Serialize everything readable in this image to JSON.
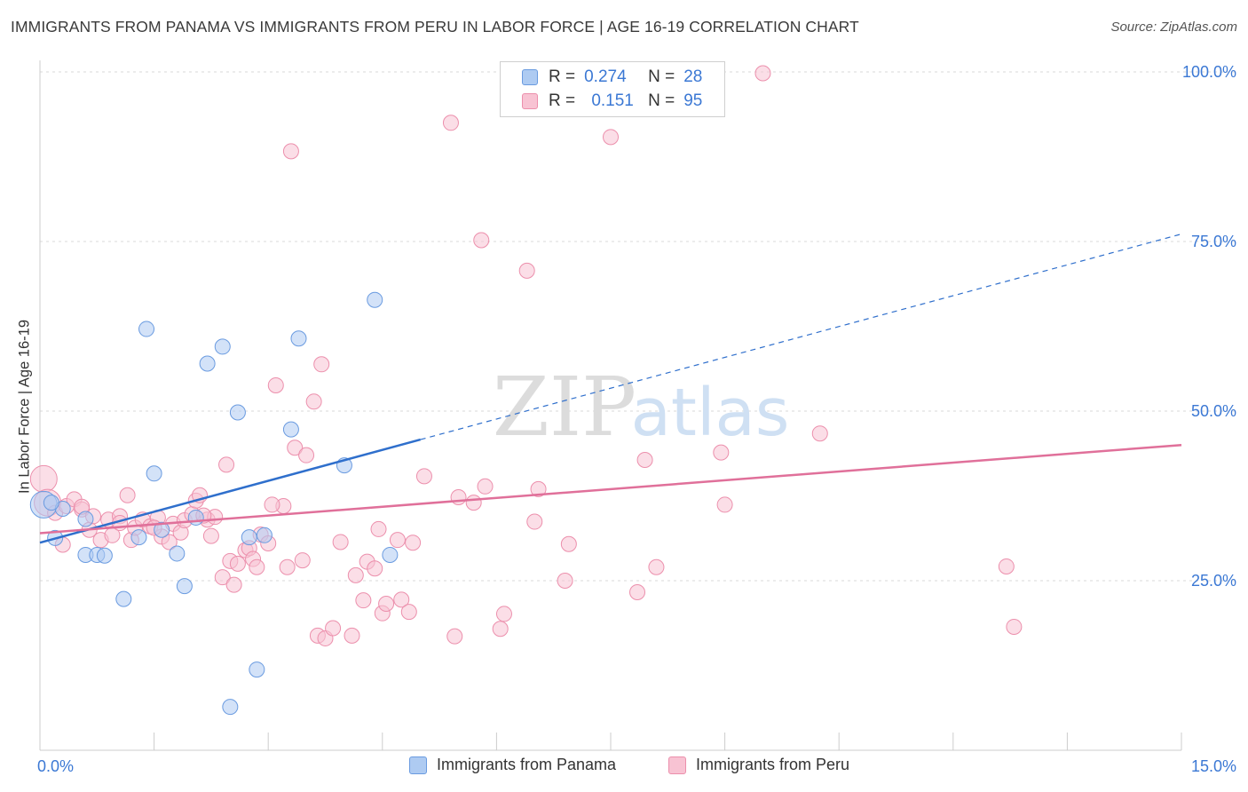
{
  "header": {
    "title": "IMMIGRANTS FROM PANAMA VS IMMIGRANTS FROM PERU IN LABOR FORCE | AGE 16-19 CORRELATION CHART",
    "source": "Source: ZipAtlas.com"
  },
  "watermark": {
    "zip": "ZIP",
    "atlas": "atlas"
  },
  "legend_top": {
    "rows": [
      {
        "r_label": "R =",
        "r_value": "0.274",
        "n_label": "N =",
        "n_value": "28"
      },
      {
        "r_label": "R =",
        "r_value": "0.151",
        "n_label": "N =",
        "n_value": "95"
      }
    ]
  },
  "legend_bottom": {
    "items": [
      {
        "label": "Immigrants from Panama"
      },
      {
        "label": "Immigrants from Peru"
      }
    ]
  },
  "colors": {
    "panama_fill": "#aecbf2",
    "panama_stroke": "#6a9be0",
    "panama_line": "#2f6fcc",
    "peru_fill": "#f8c3d3",
    "peru_stroke": "#ec8fac",
    "peru_line": "#e0709a",
    "tick_text": "#3b78d4",
    "grid": "#d9d9d9"
  },
  "chart_data": {
    "type": "scatter",
    "title": "IMMIGRANTS FROM PANAMA VS IMMIGRANTS FROM PERU IN LABOR FORCE | AGE 16-19 CORRELATION CHART",
    "xlabel": "",
    "ylabel": "In Labor Force | Age 16-19",
    "xlim": [
      0,
      15
    ],
    "ylim": [
      0,
      100
    ],
    "x_tick_labels": [
      "0.0%",
      "15.0%"
    ],
    "y_ticks": [
      25,
      50,
      75,
      100
    ],
    "y_tick_labels": [
      "25.0%",
      "50.0%",
      "75.0%",
      "100.0%"
    ],
    "grid": true,
    "legend_position": "top-center",
    "series": [
      {
        "name": "Immigrants from Panama",
        "r": 0.274,
        "n": 28,
        "trend": {
          "x0": 0.0,
          "y0": 30.6,
          "x1": 5.0,
          "y1": 45.8,
          "dashed_to_x": 15.0,
          "dashed_to_y": 76.1
        },
        "points": [
          [
            0.05,
            36.2
          ],
          [
            0.2,
            31.3
          ],
          [
            0.3,
            35.6
          ],
          [
            0.6,
            34.1
          ],
          [
            0.6,
            28.8
          ],
          [
            0.75,
            28.8
          ],
          [
            0.85,
            28.7
          ],
          [
            1.1,
            22.3
          ],
          [
            1.3,
            31.4
          ],
          [
            1.4,
            62.1
          ],
          [
            1.5,
            40.8
          ],
          [
            1.6,
            32.5
          ],
          [
            1.8,
            29.0
          ],
          [
            1.9,
            24.2
          ],
          [
            2.05,
            34.3
          ],
          [
            2.2,
            57.0
          ],
          [
            2.4,
            59.5
          ],
          [
            2.5,
            6.4
          ],
          [
            2.6,
            49.8
          ],
          [
            2.75,
            31.4
          ],
          [
            2.85,
            11.9
          ],
          [
            2.95,
            31.7
          ],
          [
            3.3,
            47.3
          ],
          [
            3.4,
            60.7
          ],
          [
            4.0,
            42.0
          ],
          [
            4.4,
            66.4
          ],
          [
            4.6,
            28.8
          ],
          [
            0.15,
            36.5
          ]
        ]
      },
      {
        "name": "Immigrants from Peru",
        "r": 0.151,
        "n": 95,
        "trend": {
          "x0": 0.0,
          "y0": 32.0,
          "x1": 15.0,
          "y1": 45.0
        },
        "points": [
          [
            0.05,
            40.0
          ],
          [
            0.1,
            36.5
          ],
          [
            0.2,
            35.0
          ],
          [
            0.3,
            30.3
          ],
          [
            0.35,
            36.0
          ],
          [
            0.45,
            37.0
          ],
          [
            0.55,
            35.5
          ],
          [
            0.65,
            32.5
          ],
          [
            0.7,
            34.5
          ],
          [
            0.8,
            31.0
          ],
          [
            0.9,
            34.0
          ],
          [
            0.95,
            31.7
          ],
          [
            1.05,
            34.5
          ],
          [
            1.15,
            37.6
          ],
          [
            1.2,
            31.0
          ],
          [
            1.25,
            32.8
          ],
          [
            1.35,
            34.0
          ],
          [
            1.45,
            33.0
          ],
          [
            1.55,
            34.3
          ],
          [
            1.6,
            31.5
          ],
          [
            1.7,
            30.7
          ],
          [
            1.75,
            33.4
          ],
          [
            1.85,
            32.1
          ],
          [
            1.9,
            33.9
          ],
          [
            2.0,
            34.8
          ],
          [
            2.05,
            36.8
          ],
          [
            2.1,
            37.6
          ],
          [
            2.2,
            34.0
          ],
          [
            2.25,
            31.6
          ],
          [
            2.3,
            34.4
          ],
          [
            2.4,
            25.5
          ],
          [
            2.45,
            42.1
          ],
          [
            2.5,
            27.9
          ],
          [
            2.55,
            24.4
          ],
          [
            2.6,
            27.5
          ],
          [
            2.7,
            29.5
          ],
          [
            2.75,
            29.8
          ],
          [
            2.8,
            28.2
          ],
          [
            2.85,
            27.0
          ],
          [
            2.9,
            31.8
          ],
          [
            3.0,
            30.5
          ],
          [
            3.1,
            53.8
          ],
          [
            3.2,
            36.0
          ],
          [
            3.25,
            27.0
          ],
          [
            3.3,
            88.3
          ],
          [
            3.35,
            44.6
          ],
          [
            3.45,
            28.0
          ],
          [
            3.5,
            43.5
          ],
          [
            3.6,
            51.4
          ],
          [
            3.65,
            16.9
          ],
          [
            3.7,
            56.9
          ],
          [
            3.75,
            16.5
          ],
          [
            3.85,
            18.0
          ],
          [
            3.95,
            30.7
          ],
          [
            4.1,
            16.9
          ],
          [
            4.15,
            25.8
          ],
          [
            4.25,
            22.1
          ],
          [
            4.3,
            27.8
          ],
          [
            4.4,
            26.8
          ],
          [
            4.45,
            32.6
          ],
          [
            4.5,
            20.2
          ],
          [
            4.55,
            21.6
          ],
          [
            4.7,
            31.0
          ],
          [
            4.75,
            22.2
          ],
          [
            4.85,
            20.4
          ],
          [
            4.9,
            30.6
          ],
          [
            5.05,
            40.4
          ],
          [
            5.4,
            92.5
          ],
          [
            5.45,
            16.8
          ],
          [
            5.5,
            37.3
          ],
          [
            5.7,
            36.5
          ],
          [
            5.8,
            75.2
          ],
          [
            5.85,
            38.9
          ],
          [
            6.05,
            17.9
          ],
          [
            6.1,
            20.1
          ],
          [
            6.4,
            70.7
          ],
          [
            6.5,
            33.7
          ],
          [
            6.55,
            38.5
          ],
          [
            6.9,
            25.0
          ],
          [
            6.95,
            30.4
          ],
          [
            7.5,
            90.4
          ],
          [
            7.85,
            23.3
          ],
          [
            7.95,
            42.8
          ],
          [
            8.1,
            27.0
          ],
          [
            8.95,
            43.9
          ],
          [
            9.0,
            36.2
          ],
          [
            9.5,
            99.8
          ],
          [
            10.25,
            46.7
          ],
          [
            12.7,
            27.1
          ],
          [
            12.8,
            18.2
          ],
          [
            1.5,
            32.8
          ],
          [
            0.55,
            35.9
          ],
          [
            1.05,
            33.5
          ],
          [
            2.15,
            34.6
          ],
          [
            3.05,
            36.2
          ]
        ]
      }
    ]
  }
}
